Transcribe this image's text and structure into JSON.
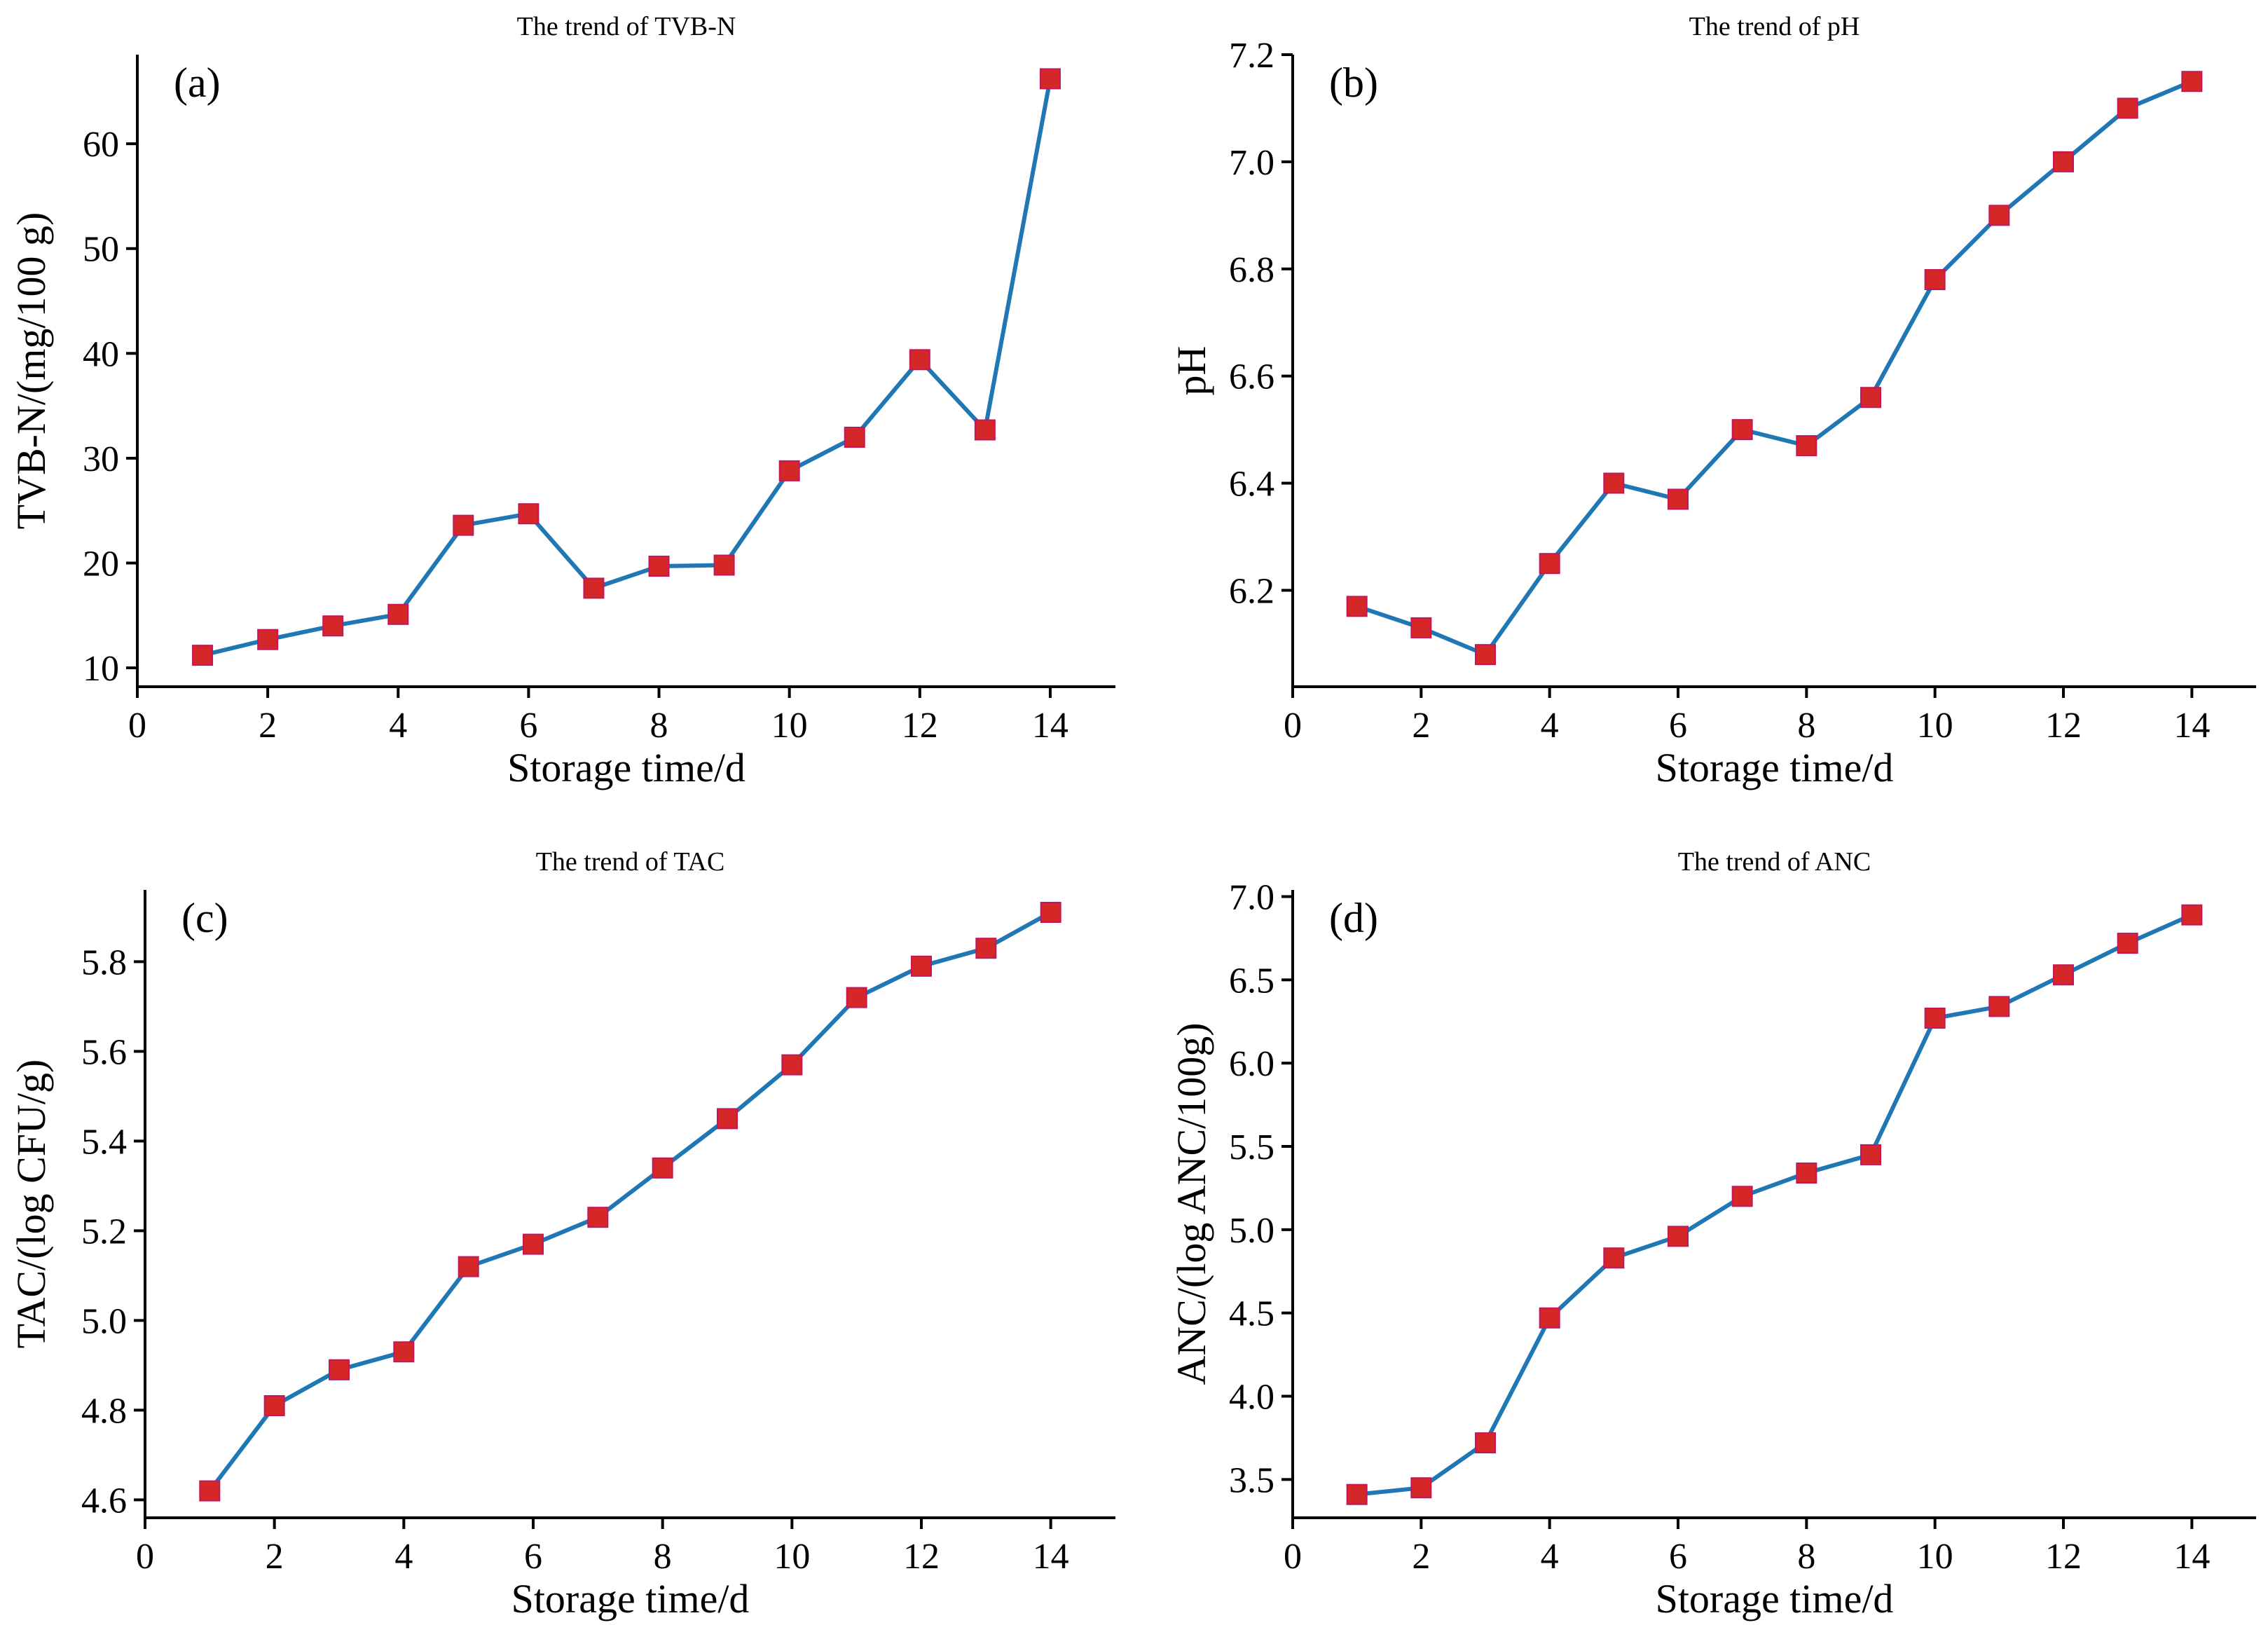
{
  "figure": {
    "series_color": "#1f77b4",
    "marker_color": "#d62728"
  },
  "chart_data": [
    {
      "type": "line",
      "panel": "(a)",
      "title": "The trend of TVB-N",
      "xlabel": "Storage time/d",
      "ylabel": "TVB-N/(mg/100 g)",
      "xlim": [
        0,
        15
      ],
      "ylim": [
        8.2,
        68.5
      ],
      "xticks": [
        0,
        2,
        4,
        6,
        8,
        10,
        12,
        14
      ],
      "yticks": [
        10,
        20,
        30,
        40,
        50,
        60
      ],
      "ytick_decimals": 0,
      "grid": false,
      "legend": "none",
      "x": [
        1,
        2,
        3,
        4,
        5,
        6,
        7,
        8,
        9,
        10,
        11,
        12,
        13,
        14
      ],
      "y": [
        11.2,
        12.7,
        14.0,
        15.1,
        23.6,
        24.7,
        17.6,
        19.7,
        19.8,
        28.8,
        32.0,
        39.4,
        32.7,
        66.2
      ]
    },
    {
      "type": "line",
      "panel": "(b)",
      "title": "The trend of pH",
      "xlabel": "Storage time/d",
      "ylabel": "pH",
      "xlim": [
        0,
        15
      ],
      "ylim": [
        6.02,
        7.2
      ],
      "xticks": [
        0,
        2,
        4,
        6,
        8,
        10,
        12,
        14
      ],
      "yticks": [
        6.2,
        6.4,
        6.6,
        6.8,
        7.0,
        7.2
      ],
      "ytick_decimals": 1,
      "grid": false,
      "legend": "none",
      "x": [
        1,
        2,
        3,
        4,
        5,
        6,
        7,
        8,
        9,
        10,
        11,
        12,
        13,
        14
      ],
      "y": [
        6.17,
        6.13,
        6.08,
        6.25,
        6.4,
        6.37,
        6.5,
        6.47,
        6.56,
        6.78,
        6.9,
        7.0,
        7.1,
        7.15
      ]
    },
    {
      "type": "line",
      "panel": "(c)",
      "title": "The trend of TAC",
      "xlabel": "Storage time/d",
      "ylabel": "TAC/(log CFU/g)",
      "xlim": [
        0,
        15
      ],
      "ylim": [
        4.56,
        5.96
      ],
      "xticks": [
        0,
        2,
        4,
        6,
        8,
        10,
        12,
        14
      ],
      "yticks": [
        4.6,
        4.8,
        5.0,
        5.2,
        5.4,
        5.6,
        5.8
      ],
      "ytick_decimals": 1,
      "grid": false,
      "legend": "none",
      "x": [
        1,
        2,
        3,
        4,
        5,
        6,
        7,
        8,
        9,
        10,
        11,
        12,
        13,
        14
      ],
      "y": [
        4.62,
        4.81,
        4.89,
        4.93,
        5.12,
        5.17,
        5.23,
        5.34,
        5.45,
        5.57,
        5.72,
        5.79,
        5.83,
        5.91
      ]
    },
    {
      "type": "line",
      "panel": "(d)",
      "title": "The trend of ANC",
      "xlabel": "Storage time/d",
      "ylabel": "ANC/(log ANC/100g)",
      "xlim": [
        0,
        15
      ],
      "ylim": [
        3.27,
        7.04
      ],
      "xticks": [
        0,
        2,
        4,
        6,
        8,
        10,
        12,
        14
      ],
      "yticks": [
        3.5,
        4.0,
        4.5,
        5.0,
        5.5,
        6.0,
        6.5,
        7.0
      ],
      "ytick_decimals": 1,
      "grid": false,
      "legend": "none",
      "x": [
        1,
        2,
        3,
        4,
        5,
        6,
        7,
        8,
        9,
        10,
        11,
        12,
        13,
        14
      ],
      "y": [
        3.41,
        3.45,
        3.72,
        4.47,
        4.83,
        4.96,
        5.2,
        5.34,
        5.45,
        6.27,
        6.34,
        6.53,
        6.72,
        6.89
      ]
    }
  ]
}
